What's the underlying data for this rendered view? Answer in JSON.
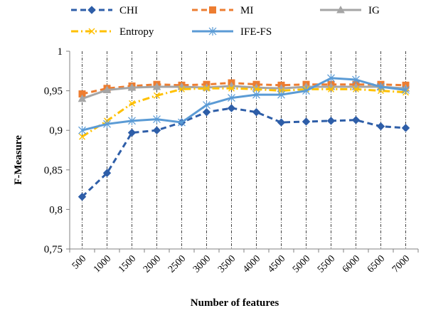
{
  "chart_data": {
    "type": "line",
    "xlabel": "Number of features",
    "ylabel": "F-Measure",
    "categories": [
      "500",
      "1000",
      "1500",
      "2000",
      "2500",
      "3000",
      "3500",
      "4000",
      "4500",
      "5000",
      "5500",
      "6000",
      "6500",
      "7000"
    ],
    "ylim": [
      0.75,
      1
    ],
    "yticks": [
      "0,75",
      "0,8",
      "0,85",
      "0,9",
      "0,95",
      "1"
    ],
    "grid": "vertical dash-dot lines at each category",
    "legend_position": "top",
    "series": [
      {
        "name": "CHI",
        "color": "#2e5ea8",
        "dash": "dashed",
        "marker": "diamond",
        "values": [
          0.816,
          0.846,
          0.897,
          0.9,
          0.91,
          0.923,
          0.928,
          0.923,
          0.91,
          0.911,
          0.912,
          0.913,
          0.905,
          0.903
        ]
      },
      {
        "name": "MI",
        "color": "#ed7d31",
        "dash": "dashed",
        "marker": "square",
        "values": [
          0.946,
          0.953,
          0.956,
          0.958,
          0.957,
          0.958,
          0.96,
          0.958,
          0.957,
          0.958,
          0.958,
          0.958,
          0.958,
          0.957
        ]
      },
      {
        "name": "IG",
        "color": "#a5a5a5",
        "dash": "solid",
        "marker": "triangle",
        "values": [
          0.94,
          0.951,
          0.954,
          0.955,
          0.955,
          0.954,
          0.956,
          0.954,
          0.953,
          0.955,
          0.955,
          0.955,
          0.955,
          0.953
        ]
      },
      {
        "name": "Entropy",
        "color": "#ffc000",
        "dash": "dashdot",
        "marker": "x",
        "values": [
          0.892,
          0.912,
          0.934,
          0.944,
          0.952,
          0.953,
          0.953,
          0.952,
          0.95,
          0.952,
          0.952,
          0.952,
          0.95,
          0.948
        ]
      },
      {
        "name": "IFE-FS",
        "color": "#5b9bd5",
        "dash": "solid",
        "marker": "asterisk",
        "values": [
          0.9,
          0.908,
          0.912,
          0.914,
          0.91,
          0.932,
          0.941,
          0.945,
          0.945,
          0.95,
          0.966,
          0.964,
          0.955,
          0.951
        ]
      }
    ]
  }
}
